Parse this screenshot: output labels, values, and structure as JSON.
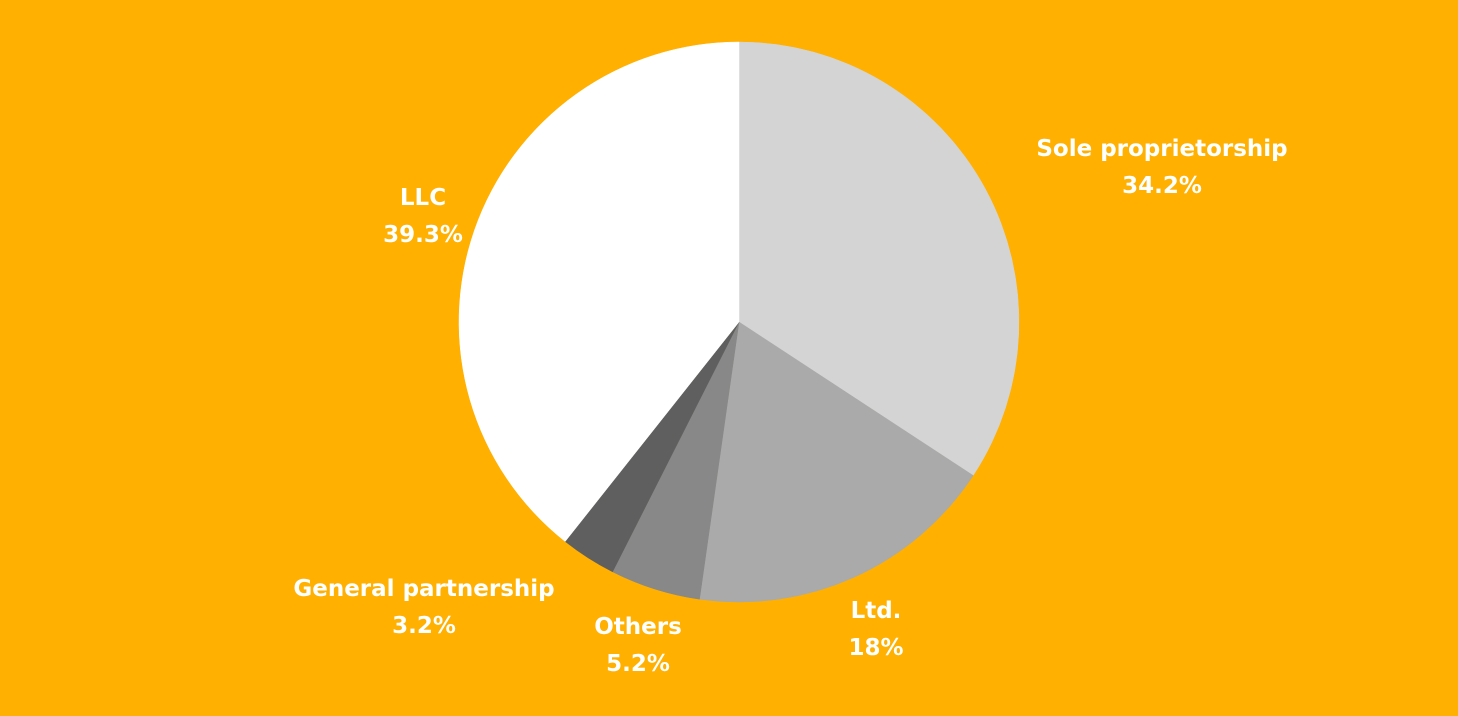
{
  "colors": {
    "background": "#FFB000",
    "label_text": "#FFFFFF",
    "slice_edge": "#FFB000"
  },
  "chart_data": {
    "type": "pie",
    "title": "",
    "start_angle_deg": 0,
    "direction": "clockwise",
    "slices": [
      {
        "name": "Sole proprietorship",
        "value": 34.2,
        "value_label": "34.2%",
        "color": "#D4D4D4"
      },
      {
        "name": "Ltd.",
        "value": 18,
        "value_label": "18%",
        "color": "#AAAAAA"
      },
      {
        "name": "Others",
        "value": 5.2,
        "value_label": "5.2%",
        "color": "#888888"
      },
      {
        "name": "General partnership",
        "value": 3.2,
        "value_label": "3.2%",
        "color": "#5F5F5F"
      },
      {
        "name": "LLC",
        "value": 39.3,
        "value_label": "39.3%",
        "color": "#FFFFFF"
      }
    ]
  }
}
